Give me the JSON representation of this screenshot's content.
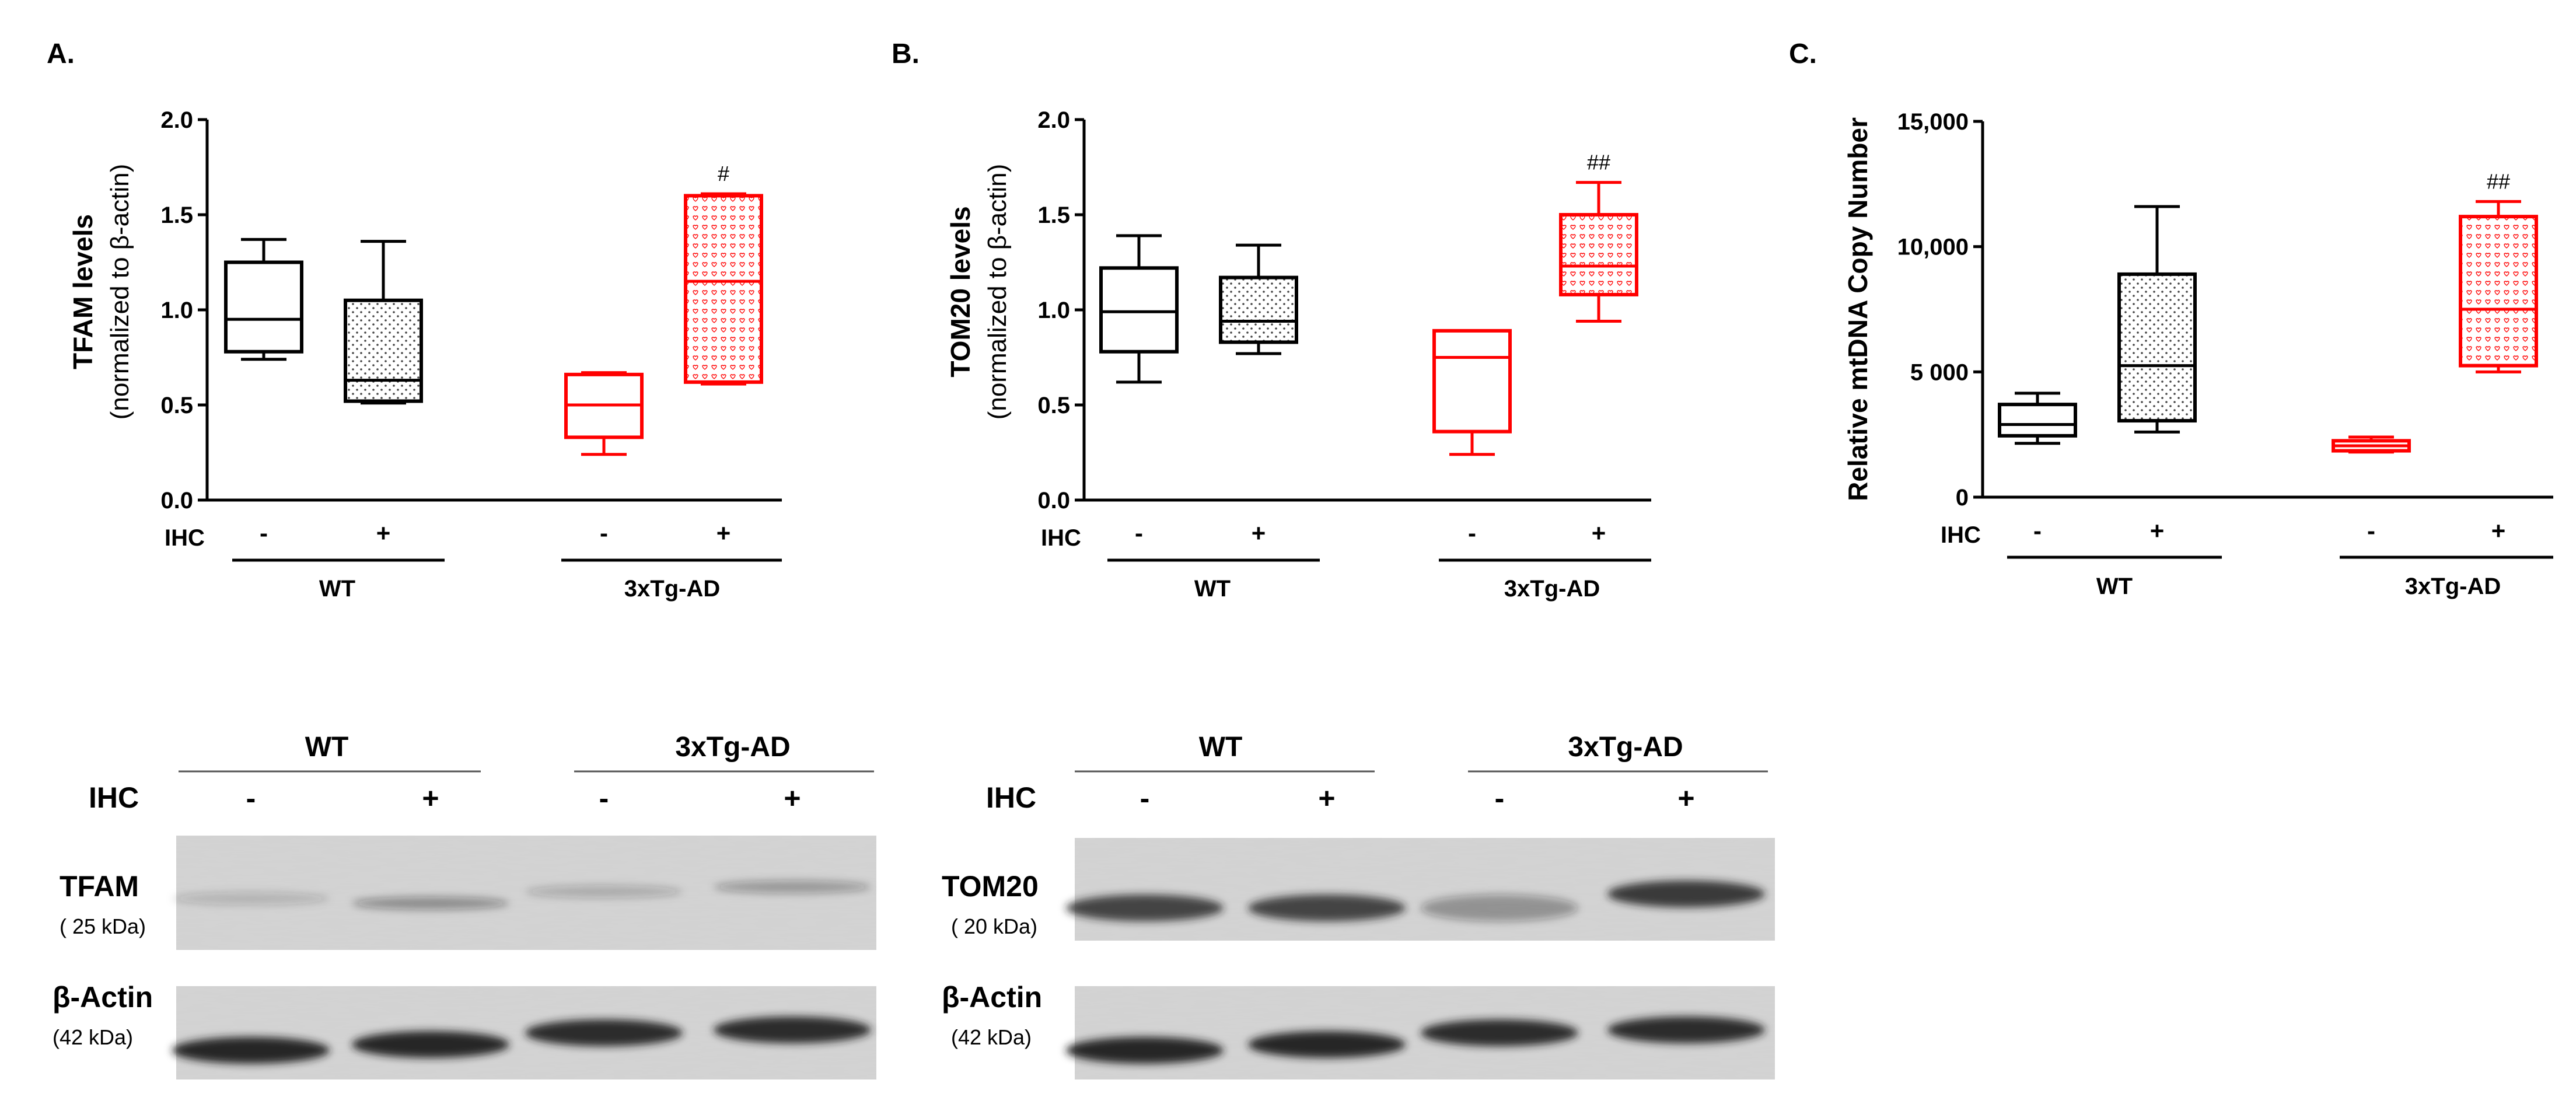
{
  "colors": {
    "wt": "#000000",
    "ad": "#ff0000",
    "blot_bg": "#d4d4d4",
    "band": "#1e1e1e"
  },
  "chart_data": [
    {
      "panel": "A.",
      "type": "box",
      "ylabel": "TFAM levels",
      "ylabel2": "(normalized to β-actin)",
      "ylim": [
        0,
        2.0
      ],
      "yticks": [
        "0.0",
        "0.5",
        "1.0",
        "1.5",
        "2.0"
      ],
      "ihc_label": "IHC",
      "groups": [
        "WT",
        "3xTg-AD"
      ],
      "categories": [
        "-",
        "+",
        "-",
        "+"
      ],
      "boxes": [
        {
          "group": "WT",
          "ihc": "-",
          "min": 0.74,
          "q1": 0.78,
          "median": 0.95,
          "q3": 1.25,
          "max": 1.37,
          "pattern": "none",
          "color": "#000000",
          "annotation": ""
        },
        {
          "group": "WT",
          "ihc": "+",
          "min": 0.51,
          "q1": 0.52,
          "median": 0.63,
          "q3": 1.05,
          "max": 1.36,
          "pattern": "dots",
          "color": "#000000",
          "annotation": ""
        },
        {
          "group": "3xTg-AD",
          "ihc": "-",
          "min": 0.24,
          "q1": 0.33,
          "median": 0.5,
          "q3": 0.66,
          "max": 0.67,
          "pattern": "none",
          "color": "#ff0000",
          "annotation": ""
        },
        {
          "group": "3xTg-AD",
          "ihc": "+",
          "min": 0.61,
          "q1": 0.62,
          "median": 1.15,
          "q3": 1.6,
          "max": 1.61,
          "pattern": "hearts",
          "color": "#ff0000",
          "annotation": "#"
        }
      ]
    },
    {
      "panel": "B.",
      "type": "box",
      "ylabel": "TOM20 levels",
      "ylabel2": "(normalized to β-actin)",
      "ylim": [
        0,
        2.0
      ],
      "yticks": [
        "0.0",
        "0.5",
        "1.0",
        "1.5",
        "2.0"
      ],
      "ihc_label": "IHC",
      "groups": [
        "WT",
        "3xTg-AD"
      ],
      "categories": [
        "-",
        "+",
        "-",
        "+"
      ],
      "boxes": [
        {
          "group": "WT",
          "ihc": "-",
          "min": 0.62,
          "q1": 0.78,
          "median": 0.99,
          "q3": 1.22,
          "max": 1.39,
          "pattern": "none",
          "color": "#000000",
          "annotation": ""
        },
        {
          "group": "WT",
          "ihc": "+",
          "min": 0.77,
          "q1": 0.83,
          "median": 0.94,
          "q3": 1.17,
          "max": 1.34,
          "pattern": "dots",
          "color": "#000000",
          "annotation": ""
        },
        {
          "group": "3xTg-AD",
          "ihc": "-",
          "min": 0.24,
          "q1": 0.36,
          "median": 0.75,
          "q3": 0.89,
          "max": 0.89,
          "pattern": "none",
          "color": "#ff0000",
          "annotation": ""
        },
        {
          "group": "3xTg-AD",
          "ihc": "+",
          "min": 0.94,
          "q1": 1.08,
          "median": 1.23,
          "q3": 1.5,
          "max": 1.67,
          "pattern": "hearts",
          "color": "#ff0000",
          "annotation": "##"
        }
      ]
    },
    {
      "panel": "C.",
      "type": "box",
      "ylabel": "Relative mtDNA Copy Number",
      "ylabel2": "",
      "ylim": [
        0,
        15000
      ],
      "yticks": [
        "0",
        "5 000",
        "10,000",
        "15,000"
      ],
      "ihc_label": "IHC",
      "groups": [
        "WT",
        "3xTg-AD"
      ],
      "categories": [
        "-",
        "+",
        "-",
        "+"
      ],
      "boxes": [
        {
          "group": "WT",
          "ihc": "-",
          "min": 2150,
          "q1": 2450,
          "median": 2900,
          "q3": 3700,
          "max": 4150,
          "pattern": "none",
          "color": "#000000",
          "annotation": ""
        },
        {
          "group": "WT",
          "ihc": "+",
          "min": 2600,
          "q1": 3050,
          "median": 5250,
          "q3": 8900,
          "max": 11600,
          "pattern": "dots",
          "color": "#000000",
          "annotation": ""
        },
        {
          "group": "3xTg-AD",
          "ihc": "-",
          "min": 1800,
          "q1": 1850,
          "median": 2050,
          "q3": 2250,
          "max": 2400,
          "pattern": "none",
          "color": "#ff0000",
          "annotation": ""
        },
        {
          "group": "3xTg-AD",
          "ihc": "+",
          "min": 5000,
          "q1": 5250,
          "median": 7500,
          "q3": 11200,
          "max": 11800,
          "pattern": "hearts",
          "color": "#ff0000",
          "annotation": "##"
        }
      ]
    }
  ],
  "blots": [
    {
      "groups": [
        "WT",
        "3xTg-AD"
      ],
      "ihc_label": "IHC",
      "lanes": [
        "-",
        "+",
        "-",
        "+"
      ],
      "rows": [
        {
          "label": "TFAM",
          "sublabel": "( 25 kDa)",
          "band_intensity": [
            0.18,
            0.38,
            0.22,
            0.32
          ]
        },
        {
          "label": "β-Actin",
          "sublabel": "(42 kDa)",
          "band_intensity": [
            0.95,
            0.95,
            0.92,
            0.92
          ]
        }
      ]
    },
    {
      "groups": [
        "WT",
        "3xTg-AD"
      ],
      "ihc_label": "IHC",
      "lanes": [
        "-",
        "+",
        "-",
        "+"
      ],
      "rows": [
        {
          "label": "TOM20",
          "sublabel": "( 20 kDa)",
          "band_intensity": [
            0.8,
            0.8,
            0.35,
            0.85
          ]
        },
        {
          "label": "β-Actin",
          "sublabel": "(42 kDa)",
          "band_intensity": [
            0.95,
            0.95,
            0.92,
            0.92
          ]
        }
      ]
    }
  ]
}
